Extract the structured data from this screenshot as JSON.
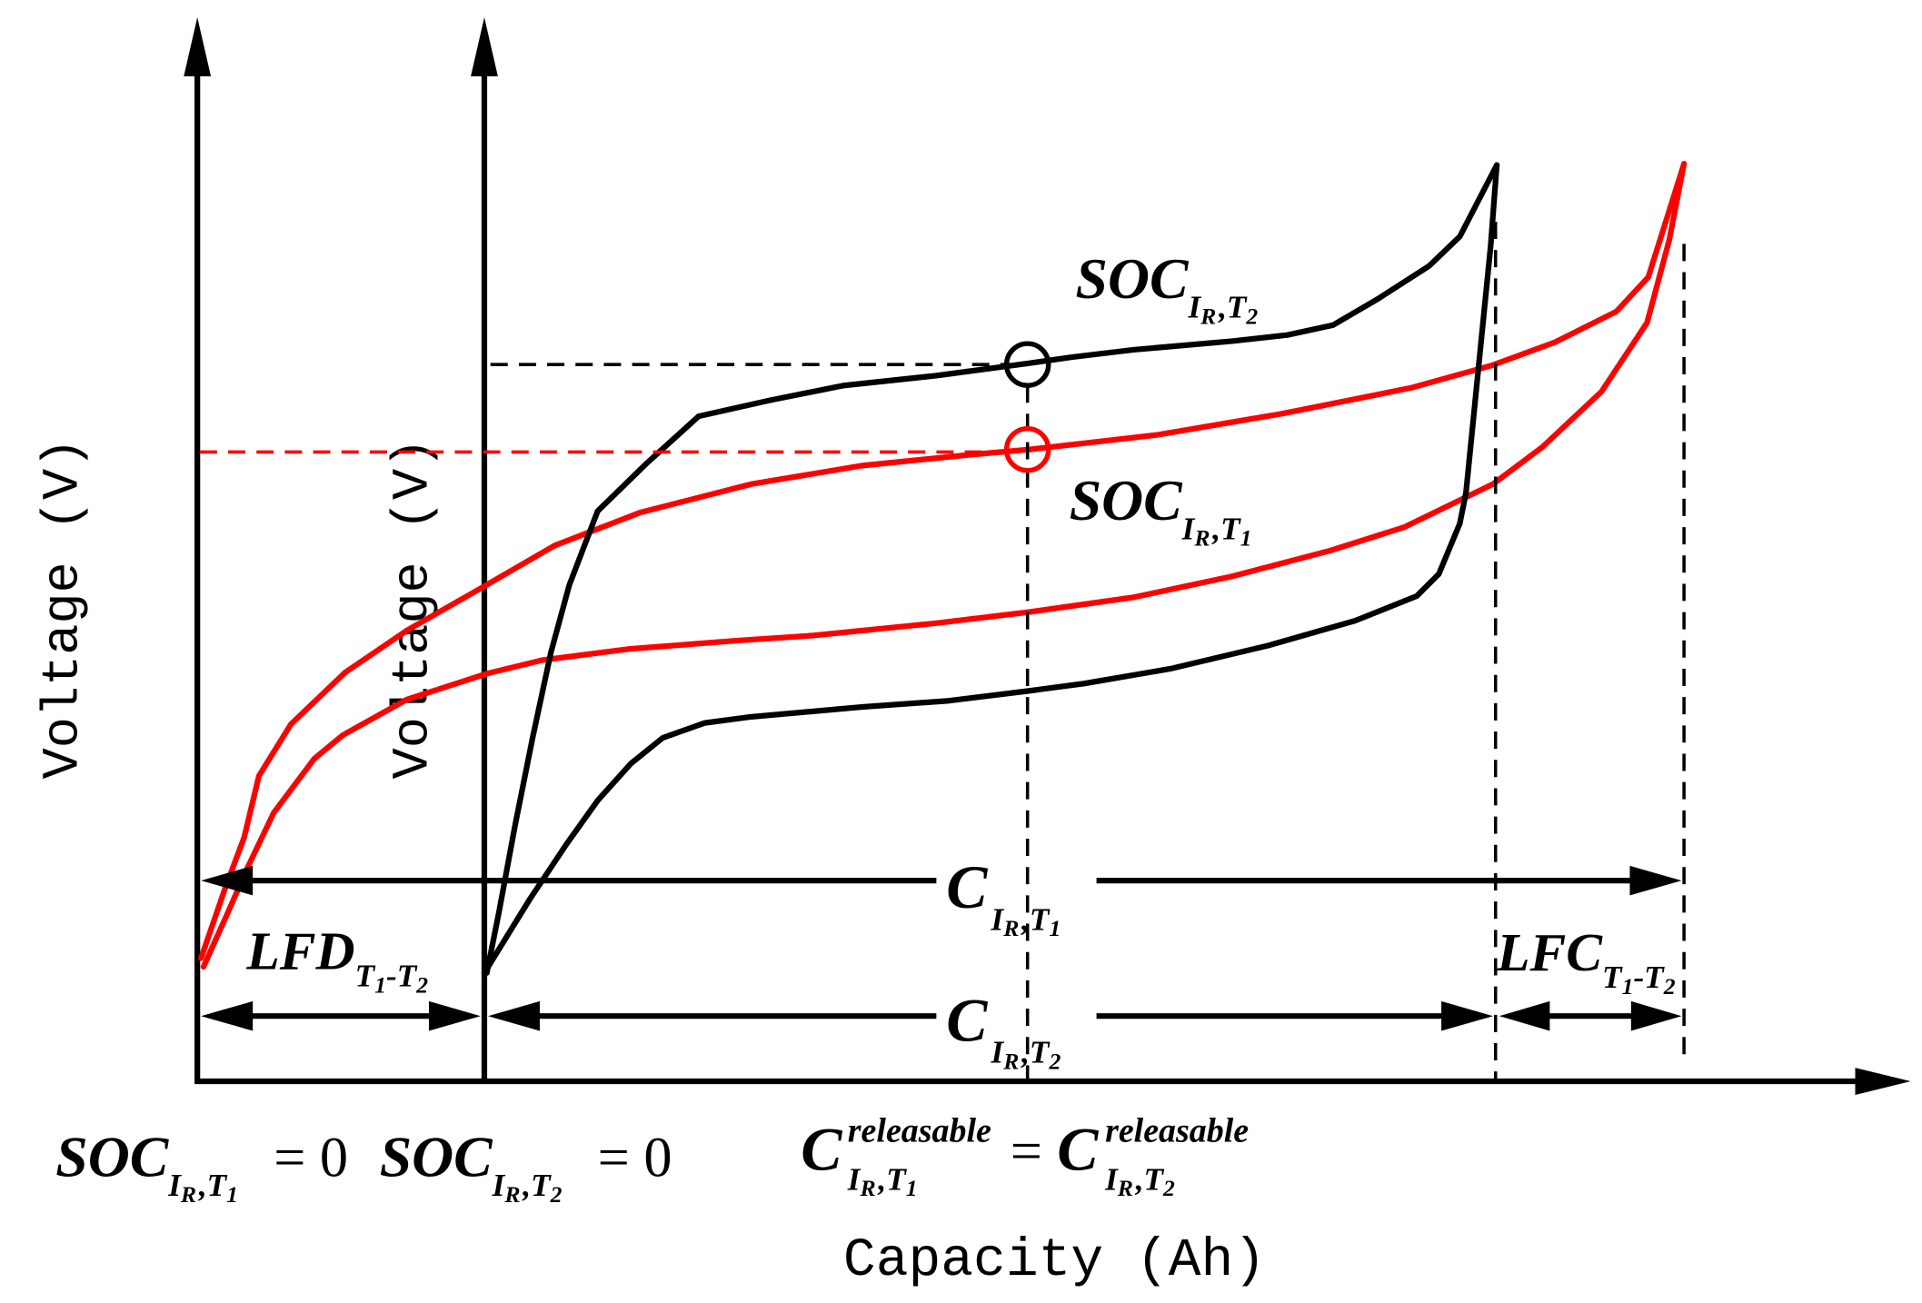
{
  "figure": {
    "y_axis_label_left": "Voltage (V)",
    "y_axis_label_right": "Voltage (V)",
    "x_axis_label": "Capacity (Ah)"
  },
  "labels": {
    "soc_t2": {
      "main": "SOC",
      "sub_i": "I",
      "sub_r": "R",
      "sub_t": ",T",
      "sub_n": "2"
    },
    "soc_t1": {
      "main": "SOC",
      "sub_i": "I",
      "sub_r": "R",
      "sub_t": ",T",
      "sub_n": "1"
    },
    "c_t1": {
      "main": "C",
      "sub_i": "I",
      "sub_r": "R",
      "sub_t": ",T",
      "sub_n": "1"
    },
    "c_t2": {
      "main": "C",
      "sub_i": "I",
      "sub_r": "R",
      "sub_t": ",T",
      "sub_n": "2"
    },
    "lfd": {
      "main": "LFD",
      "sub_a": "T",
      "sub_a_n": "1",
      "sub_b": "-T",
      "sub_b_n": "2"
    },
    "lfc": {
      "main": "LFC",
      "sub_a": "T",
      "sub_a_n": "1",
      "sub_b": "-T",
      "sub_b_n": "2"
    }
  },
  "equations": {
    "soc_t1_zero": {
      "main": "SOC",
      "sub_i": "I",
      "sub_r": "R",
      "sub_t": ",T",
      "sub_n": "1",
      "rhs": "= 0"
    },
    "soc_t2_zero": {
      "main": "SOC",
      "sub_i": "I",
      "sub_r": "R",
      "sub_t": ",T",
      "sub_n": "2",
      "rhs": "= 0"
    },
    "releasable": {
      "lhs": {
        "main": "C",
        "sup": "releasable",
        "sub_i": "I",
        "sub_r": "R",
        "sub_t": ",T",
        "sub_n": "1"
      },
      "equals": "=",
      "rhs": {
        "main": "C",
        "sup": "releasable",
        "sub_i": "I",
        "sub_r": "R",
        "sub_t": ",T",
        "sub_n": "2"
      }
    }
  },
  "colors": {
    "curve_t1": "#ff0000",
    "curve_t2": "#000000",
    "axes": "#000000"
  }
}
